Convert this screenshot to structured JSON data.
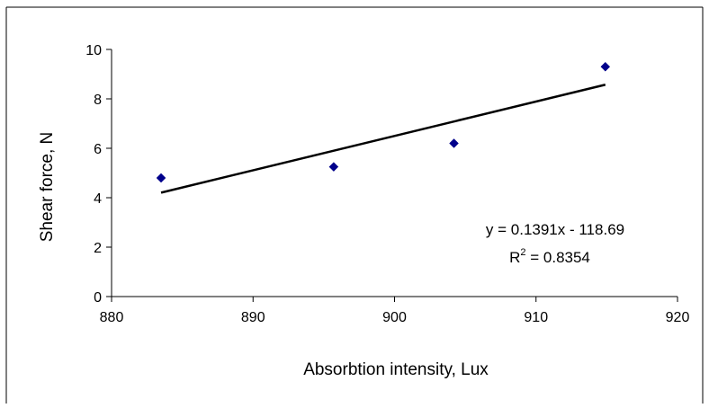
{
  "chart_data": {
    "type": "scatter",
    "title": "",
    "xlabel": "Absorbtion intensity, Lux",
    "ylabel": "Shear force, N",
    "xlim": [
      880,
      920
    ],
    "ylim": [
      0,
      10
    ],
    "xticks": [
      880,
      890,
      900,
      910,
      920
    ],
    "yticks": [
      0,
      2,
      4,
      6,
      8,
      10
    ],
    "x_tick_labels": [
      "880",
      "890",
      "900",
      "910",
      "920"
    ],
    "y_tick_labels": [
      "0",
      "2",
      "4",
      "6",
      "8",
      "10"
    ],
    "grid": false,
    "legend": "none",
    "series": [
      {
        "x": [
          883.5,
          895.7,
          904.2,
          914.9
        ],
        "y": [
          4.8,
          5.25,
          6.2,
          9.3
        ],
        "marker": "diamond",
        "color": "#00008B"
      }
    ],
    "trendline": {
      "type": "linear",
      "slope": 0.1391,
      "intercept": -118.69,
      "x_range": [
        883.5,
        914.9
      ],
      "color": "#000000"
    },
    "annotations": {
      "equation": "y = 0.1391x - 118.69",
      "r2_prefix": "R",
      "r2_superscript": "2",
      "r2_value": " = 0.8354"
    }
  }
}
